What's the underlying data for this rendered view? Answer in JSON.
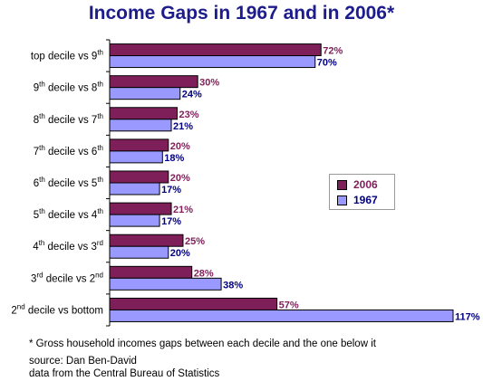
{
  "title": "Income Gaps in 1967 and in 2006*",
  "footnotes": {
    "note": "* Gross household incomes gaps between each decile and the one below it",
    "source_line1": "source: Dan Ben-David",
    "source_line2": "data from the Central Bureau of Statistics"
  },
  "chart_data": {
    "type": "bar",
    "orientation": "horizontal",
    "title": "Income Gaps in 1967 and in 2006*",
    "categories": [
      {
        "a": "top decile vs 9",
        "a_sup": "",
        "b_sup": "th",
        "tail": ""
      },
      {
        "a": "9",
        "a_sup": "th",
        "mid": " decile vs 8",
        "b_sup": "th"
      },
      {
        "a": "8",
        "a_sup": "th",
        "mid": " decile vs 7",
        "b_sup": "th"
      },
      {
        "a": "7",
        "a_sup": "th",
        "mid": " decile vs 6",
        "b_sup": "th"
      },
      {
        "a": "6",
        "a_sup": "th",
        "mid": " decile vs 5",
        "b_sup": "th"
      },
      {
        "a": "5",
        "a_sup": "th",
        "mid": " decile vs 4",
        "b_sup": "th"
      },
      {
        "a": "4",
        "a_sup": "th",
        "mid": " decile vs 3",
        "b_sup": "rd"
      },
      {
        "a": "3",
        "a_sup": "rd",
        "mid": " decile vs 2",
        "b_sup": "nd"
      },
      {
        "a": "2",
        "a_sup": "nd",
        "mid": " decile vs bottom",
        "b_sup": ""
      }
    ],
    "series": [
      {
        "name": "2006",
        "values": [
          72,
          30,
          23,
          20,
          20,
          21,
          25,
          28,
          57
        ],
        "color": "#7f1f5a",
        "label_color": "#7f1f5a"
      },
      {
        "name": "1967",
        "values": [
          70,
          24,
          21,
          18,
          17,
          17,
          20,
          38,
          117
        ],
        "color": "#9999ff",
        "label_color": "#000080"
      }
    ],
    "value_suffix": "%",
    "xlim": [
      0,
      117
    ],
    "grid": false,
    "legend_position": "right"
  }
}
